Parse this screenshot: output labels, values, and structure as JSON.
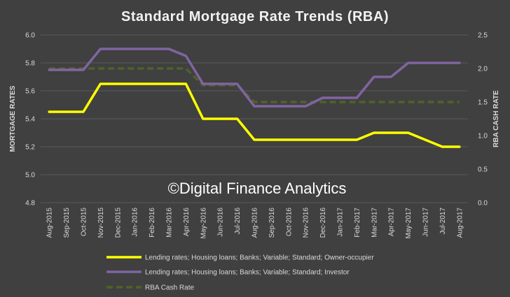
{
  "chart_data": {
    "type": "line",
    "title": "Standard Mortgage Rate Trends (RBA)",
    "ylabel": "MORTGAGE RATES",
    "y2label": "RBA CASH RATE",
    "ylim": [
      4.8,
      6.0
    ],
    "y2lim": [
      0.0,
      2.5
    ],
    "yticks": [
      "6.0",
      "5.8",
      "5.6",
      "5.4",
      "5.2",
      "5.0",
      "4.8"
    ],
    "y2ticks": [
      "2.5",
      "2.0",
      "1.5",
      "1.0",
      "0.5",
      "0.0"
    ],
    "grid": true,
    "legend_position": "bottom",
    "watermark": "©Digital Finance Analytics",
    "categories": [
      "Aug-2015",
      "Sep-2015",
      "Oct-2015",
      "Nov-2015",
      "Dec-2015",
      "Jan-2016",
      "Feb-2016",
      "Mar-2016",
      "Apr-2016",
      "May-2016",
      "Jun-2016",
      "Jul-2016",
      "Aug-2016",
      "Sep-2016",
      "Oct-2016",
      "Nov-2016",
      "Dec-2016",
      "Jan-2017",
      "Feb-2017",
      "Mar-2017",
      "Apr-2017",
      "May-2017",
      "Jun-2017",
      "Jul-2017",
      "Aug-2017"
    ],
    "series": [
      {
        "name": "Lending rates; Housing loans; Banks; Variable; Standard; Owner-occupier",
        "axis": "left",
        "color": "#ffff00",
        "style": "solid",
        "values": [
          5.45,
          5.45,
          5.45,
          5.65,
          5.65,
          5.65,
          5.65,
          5.65,
          5.65,
          5.4,
          5.4,
          5.4,
          5.25,
          5.25,
          5.25,
          5.25,
          5.25,
          5.25,
          5.25,
          5.3,
          5.3,
          5.3,
          5.25,
          5.2,
          5.2
        ]
      },
      {
        "name": "Lending rates; Housing loans; Banks; Variable; Standard; Investor",
        "axis": "left",
        "color": "#8064a2",
        "style": "solid",
        "values": [
          5.75,
          5.75,
          5.75,
          5.9,
          5.9,
          5.9,
          5.9,
          5.9,
          5.85,
          5.65,
          5.65,
          5.65,
          5.49,
          5.49,
          5.49,
          5.49,
          5.55,
          5.55,
          5.55,
          5.7,
          5.7,
          5.8,
          5.8,
          5.8,
          5.8
        ]
      },
      {
        "name": "RBA Cash Rate",
        "axis": "right",
        "color": "#4f6228",
        "style": "dashed",
        "values": [
          2.0,
          2.0,
          2.0,
          2.0,
          2.0,
          2.0,
          2.0,
          2.0,
          2.0,
          1.75,
          1.75,
          1.75,
          1.5,
          1.5,
          1.5,
          1.5,
          1.5,
          1.5,
          1.5,
          1.5,
          1.5,
          1.5,
          1.5,
          1.5,
          1.5
        ]
      }
    ]
  }
}
